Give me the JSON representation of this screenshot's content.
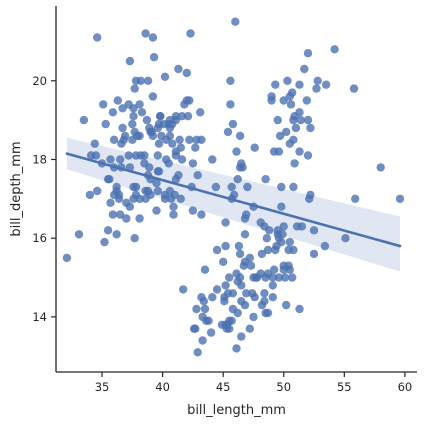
{
  "chart_data": {
    "type": "scatter",
    "xlabel": "bill_length_mm",
    "ylabel": "bill_depth_mm",
    "xlim": [
      31.2,
      61.0
    ],
    "ylim": [
      12.6,
      21.9
    ],
    "x_ticks": [
      35,
      40,
      45,
      50,
      55,
      60
    ],
    "y_ticks": [
      14,
      16,
      18,
      20
    ],
    "grid": false,
    "colors": {
      "points": "#4c72b0",
      "line": "#4c72b0",
      "band": "#dbe3f0",
      "axis": "#262626"
    },
    "regression": {
      "x": [
        32.1,
        59.6
      ],
      "y": [
        18.15,
        15.8
      ],
      "ci_upper": [
        18.55,
        16.55
      ],
      "ci_lower": [
        17.75,
        15.15
      ]
    },
    "points": [
      [
        32.1,
        15.5
      ],
      [
        33.1,
        16.1
      ],
      [
        33.5,
        19.0
      ],
      [
        34.0,
        17.1
      ],
      [
        34.1,
        18.1
      ],
      [
        34.4,
        18.4
      ],
      [
        34.5,
        18.1
      ],
      [
        34.6,
        21.1
      ],
      [
        34.6,
        17.2
      ],
      [
        35.0,
        17.9
      ],
      [
        35.1,
        19.4
      ],
      [
        35.2,
        15.9
      ],
      [
        35.3,
        18.9
      ],
      [
        35.5,
        16.2
      ],
      [
        35.5,
        17.5
      ],
      [
        35.6,
        17.5
      ],
      [
        35.7,
        16.9
      ],
      [
        35.7,
        18.0
      ],
      [
        35.9,
        16.6
      ],
      [
        35.9,
        19.2
      ],
      [
        36.0,
        17.1
      ],
      [
        36.0,
        17.8
      ],
      [
        36.0,
        18.5
      ],
      [
        36.2,
        16.1
      ],
      [
        36.2,
        17.2
      ],
      [
        36.2,
        17.3
      ],
      [
        36.3,
        19.5
      ],
      [
        36.4,
        17.0
      ],
      [
        36.4,
        17.1
      ],
      [
        36.5,
        16.6
      ],
      [
        36.5,
        18.0
      ],
      [
        36.6,
        17.8
      ],
      [
        36.6,
        18.4
      ],
      [
        36.7,
        18.8
      ],
      [
        36.7,
        19.3
      ],
      [
        36.8,
        18.5
      ],
      [
        36.9,
        18.6
      ],
      [
        37.0,
        16.5
      ],
      [
        37.0,
        16.9
      ],
      [
        37.2,
        18.1
      ],
      [
        37.2,
        19.4
      ],
      [
        37.3,
        16.8
      ],
      [
        37.3,
        17.8
      ],
      [
        37.3,
        20.5
      ],
      [
        37.5,
        18.5
      ],
      [
        37.5,
        18.9
      ],
      [
        37.6,
        17.0
      ],
      [
        37.6,
        17.3
      ],
      [
        37.6,
        19.1
      ],
      [
        37.6,
        19.3
      ],
      [
        37.7,
        16.0
      ],
      [
        37.7,
        18.7
      ],
      [
        37.7,
        19.8
      ],
      [
        37.8,
        17.1
      ],
      [
        37.8,
        17.3
      ],
      [
        37.8,
        18.1
      ],
      [
        37.8,
        20.0
      ],
      [
        37.9,
        18.6
      ],
      [
        38.1,
        16.5
      ],
      [
        38.1,
        17.0
      ],
      [
        38.1,
        18.6
      ],
      [
        38.1,
        19.4
      ],
      [
        38.2,
        18.1
      ],
      [
        38.2,
        20.0
      ],
      [
        38.3,
        19.2
      ],
      [
        38.5,
        17.9
      ],
      [
        38.5,
        18.1
      ],
      [
        38.6,
        17.0
      ],
      [
        38.6,
        17.2
      ],
      [
        38.6,
        21.2
      ],
      [
        38.7,
        19.0
      ],
      [
        38.8,
        17.2
      ],
      [
        38.8,
        17.6
      ],
      [
        38.8,
        20.0
      ],
      [
        38.9,
        17.8
      ],
      [
        38.9,
        18.8
      ],
      [
        39.0,
        17.1
      ],
      [
        39.0,
        17.5
      ],
      [
        39.0,
        18.7
      ],
      [
        39.1,
        18.7
      ],
      [
        39.2,
        18.6
      ],
      [
        39.2,
        19.6
      ],
      [
        39.2,
        21.1
      ],
      [
        39.3,
        20.6
      ],
      [
        39.5,
        16.7
      ],
      [
        39.5,
        17.4
      ],
      [
        39.6,
        17.2
      ],
      [
        39.6,
        17.7
      ],
      [
        39.6,
        18.1
      ],
      [
        39.6,
        18.8
      ],
      [
        39.7,
        17.7
      ],
      [
        39.7,
        18.4
      ],
      [
        39.7,
        18.9
      ],
      [
        39.8,
        19.1
      ],
      [
        39.8,
        19.1
      ],
      [
        39.9,
        18.6
      ],
      [
        40.1,
        18.9
      ],
      [
        40.2,
        17.0
      ],
      [
        40.2,
        17.1
      ],
      [
        40.2,
        20.1
      ],
      [
        40.3,
        18.0
      ],
      [
        40.3,
        18.5
      ],
      [
        40.5,
        17.9
      ],
      [
        40.5,
        18.9
      ],
      [
        40.6,
        17.2
      ],
      [
        40.6,
        18.6
      ],
      [
        40.6,
        18.8
      ],
      [
        40.6,
        19.0
      ],
      [
        40.7,
        17.0
      ],
      [
        40.8,
        18.4
      ],
      [
        40.8,
        18.9
      ],
      [
        40.9,
        16.6
      ],
      [
        40.9,
        16.8
      ],
      [
        41.0,
        17.1
      ],
      [
        41.1,
        17.5
      ],
      [
        41.1,
        18.1
      ],
      [
        41.1,
        18.2
      ],
      [
        41.1,
        19.0
      ],
      [
        41.1,
        19.1
      ],
      [
        41.3,
        17.6
      ],
      [
        41.3,
        20.3
      ],
      [
        41.4,
        18.5
      ],
      [
        41.5,
        17.0
      ],
      [
        41.5,
        18.3
      ],
      [
        41.6,
        18.0
      ],
      [
        41.6,
        19.1
      ],
      [
        41.7,
        14.7
      ],
      [
        41.8,
        19.4
      ],
      [
        42.0,
        19.5
      ],
      [
        42.0,
        20.2
      ],
      [
        42.1,
        19.1
      ],
      [
        42.2,
        18.5
      ],
      [
        42.2,
        19.5
      ],
      [
        42.3,
        21.2
      ],
      [
        42.4,
        17.3
      ],
      [
        42.5,
        16.7
      ],
      [
        42.5,
        17.9
      ],
      [
        42.6,
        13.7
      ],
      [
        42.7,
        18.3
      ],
      [
        42.7,
        13.7
      ],
      [
        42.8,
        18.5
      ],
      [
        42.8,
        14.2
      ],
      [
        42.9,
        17.6
      ],
      [
        42.9,
        13.1
      ],
      [
        43.1,
        19.2
      ],
      [
        43.2,
        18.5
      ],
      [
        43.2,
        16.6
      ],
      [
        43.2,
        14.5
      ],
      [
        43.3,
        13.4
      ],
      [
        43.3,
        14.0
      ],
      [
        43.4,
        14.4
      ],
      [
        43.5,
        15.2
      ],
      [
        43.5,
        14.2
      ],
      [
        43.6,
        13.9
      ],
      [
        43.8,
        13.9
      ],
      [
        44.0,
        13.6
      ],
      [
        44.1,
        14.5
      ],
      [
        44.1,
        18.0
      ],
      [
        44.4,
        17.3
      ],
      [
        44.5,
        15.7
      ],
      [
        44.5,
        14.7
      ],
      [
        44.9,
        13.8
      ],
      [
        45.0,
        15.4
      ],
      [
        45.1,
        14.5
      ],
      [
        45.1,
        14.4
      ],
      [
        45.2,
        16.4
      ],
      [
        45.2,
        15.8
      ],
      [
        45.2,
        14.8
      ],
      [
        45.2,
        13.8
      ],
      [
        45.3,
        13.8
      ],
      [
        45.3,
        13.7
      ],
      [
        45.4,
        14.6
      ],
      [
        45.4,
        18.7
      ],
      [
        45.5,
        13.7
      ],
      [
        45.5,
        15.0
      ],
      [
        45.5,
        13.9
      ],
      [
        45.6,
        20.0
      ],
      [
        45.6,
        19.4
      ],
      [
        45.7,
        17.0
      ],
      [
        45.7,
        17.3
      ],
      [
        45.7,
        13.9
      ],
      [
        45.8,
        14.6
      ],
      [
        45.8,
        14.2
      ],
      [
        45.8,
        18.9
      ],
      [
        45.9,
        17.1
      ],
      [
        46.0,
        21.5
      ],
      [
        46.1,
        13.2
      ],
      [
        46.1,
        15.1
      ],
      [
        46.1,
        18.2
      ],
      [
        46.2,
        14.9
      ],
      [
        46.2,
        14.1
      ],
      [
        46.2,
        17.5
      ],
      [
        46.3,
        15.8
      ],
      [
        46.4,
        15.0
      ],
      [
        46.4,
        15.6
      ],
      [
        46.4,
        18.6
      ],
      [
        46.4,
        17.8
      ],
      [
        46.5,
        13.5
      ],
      [
        46.5,
        14.4
      ],
      [
        46.5,
        14.8
      ],
      [
        46.5,
        17.9
      ],
      [
        46.6,
        17.8
      ],
      [
        46.7,
        15.3
      ],
      [
        46.8,
        14.3
      ],
      [
        46.8,
        15.4
      ],
      [
        46.8,
        16.1
      ],
      [
        46.8,
        16.5
      ],
      [
        46.9,
        14.6
      ],
      [
        46.9,
        16.6
      ],
      [
        47.0,
        17.3
      ],
      [
        47.2,
        13.7
      ],
      [
        47.2,
        15.5
      ],
      [
        47.3,
        15.3
      ],
      [
        47.4,
        14.6
      ],
      [
        47.5,
        14.0
      ],
      [
        47.5,
        15.0
      ],
      [
        47.5,
        16.8
      ],
      [
        47.6,
        14.5
      ],
      [
        47.6,
        18.3
      ],
      [
        47.7,
        15.0
      ],
      [
        47.8,
        15.0
      ],
      [
        48.1,
        15.1
      ],
      [
        48.1,
        16.4
      ],
      [
        48.2,
        14.3
      ],
      [
        48.2,
        15.6
      ],
      [
        48.4,
        14.4
      ],
      [
        48.4,
        14.6
      ],
      [
        48.4,
        16.3
      ],
      [
        48.5,
        14.1
      ],
      [
        48.5,
        15.0
      ],
      [
        48.5,
        17.5
      ],
      [
        48.6,
        16.0
      ],
      [
        48.7,
        14.1
      ],
      [
        48.7,
        15.1
      ],
      [
        48.7,
        15.7
      ],
      [
        48.8,
        16.2
      ],
      [
        49.0,
        19.5
      ],
      [
        49.0,
        19.6
      ],
      [
        49.1,
        14.5
      ],
      [
        49.1,
        14.8
      ],
      [
        49.1,
        15.0
      ],
      [
        49.2,
        15.2
      ],
      [
        49.2,
        18.2
      ],
      [
        49.3,
        15.7
      ],
      [
        49.3,
        19.9
      ],
      [
        49.4,
        15.8
      ],
      [
        49.5,
        16.1
      ],
      [
        49.5,
        16.2
      ],
      [
        49.5,
        19.0
      ],
      [
        49.6,
        15.0
      ],
      [
        49.6,
        16.0
      ],
      [
        49.6,
        18.2
      ],
      [
        49.7,
        18.6
      ],
      [
        49.8,
        15.9
      ],
      [
        49.8,
        16.8
      ],
      [
        49.8,
        17.3
      ],
      [
        49.9,
        16.1
      ],
      [
        50.0,
        15.2
      ],
      [
        50.0,
        15.3
      ],
      [
        50.0,
        16.3
      ],
      [
        50.0,
        19.5
      ],
      [
        50.1,
        15.0
      ],
      [
        50.2,
        14.3
      ],
      [
        50.2,
        18.7
      ],
      [
        50.3,
        20.0
      ],
      [
        50.4,
        15.3
      ],
      [
        50.4,
        15.7
      ],
      [
        50.5,
        15.2
      ],
      [
        50.5,
        15.9
      ],
      [
        50.5,
        18.4
      ],
      [
        50.5,
        19.6
      ],
      [
        50.6,
        19.4
      ],
      [
        50.7,
        15.0
      ],
      [
        50.7,
        19.7
      ],
      [
        50.8,
        15.7
      ],
      [
        50.8,
        17.3
      ],
      [
        50.8,
        18.5
      ],
      [
        50.8,
        19.0
      ],
      [
        50.9,
        17.9
      ],
      [
        50.9,
        19.1
      ],
      [
        51.0,
        18.8
      ],
      [
        51.1,
        16.3
      ],
      [
        51.3,
        14.2
      ],
      [
        51.3,
        18.2
      ],
      [
        51.3,
        19.2
      ],
      [
        51.3,
        19.9
      ],
      [
        51.4,
        19.0
      ],
      [
        51.5,
        16.3
      ],
      [
        51.7,
        20.3
      ],
      [
        51.9,
        19.5
      ],
      [
        52.0,
        18.1
      ],
      [
        52.0,
        19.0
      ],
      [
        52.0,
        20.7
      ],
      [
        52.1,
        17.0
      ],
      [
        52.2,
        17.1
      ],
      [
        52.2,
        18.8
      ],
      [
        52.5,
        15.6
      ],
      [
        52.5,
        16.2
      ],
      [
        52.7,
        19.8
      ],
      [
        52.8,
        20.0
      ],
      [
        53.4,
        15.8
      ],
      [
        53.5,
        19.9
      ],
      [
        54.2,
        20.8
      ],
      [
        55.1,
        16.0
      ],
      [
        55.8,
        19.8
      ],
      [
        55.9,
        17.0
      ],
      [
        58.0,
        17.8
      ],
      [
        59.6,
        17.0
      ]
    ]
  }
}
